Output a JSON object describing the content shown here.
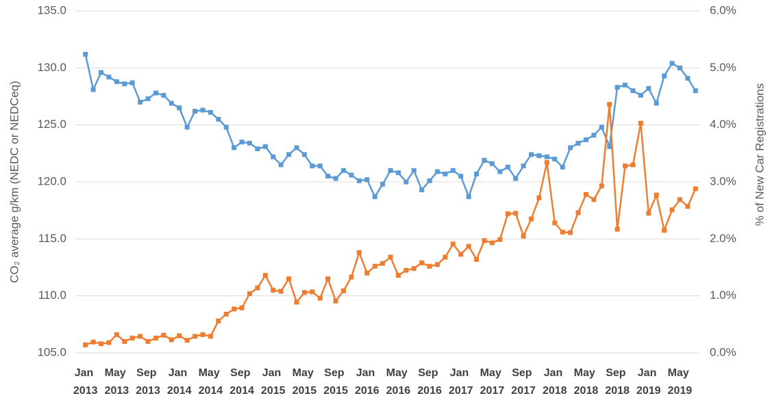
{
  "chart_data": {
    "type": "line",
    "y_label": "CO₂ average g/km (NEDC or NEDCeq)",
    "y2_label": "% of New Car Registrations",
    "categories": [
      "Jan 2013",
      null,
      null,
      null,
      "May 2013",
      null,
      null,
      null,
      "Sep 2013",
      null,
      null,
      null,
      "Jan 2014",
      null,
      null,
      null,
      "May 2014",
      null,
      null,
      null,
      "Sep 2014",
      null,
      null,
      null,
      "Jan 2015",
      null,
      null,
      null,
      "May 2015",
      null,
      null,
      null,
      "Sep 2015",
      null,
      null,
      null,
      "Jan 2016",
      null,
      null,
      null,
      "May 2016",
      null,
      null,
      null,
      "Sep 2016",
      null,
      null,
      null,
      "Jan 2017",
      null,
      null,
      null,
      "May 2017",
      null,
      null,
      null,
      "Sep 2017",
      null,
      null,
      null,
      "Jan 2018",
      null,
      null,
      null,
      "May 2018",
      null,
      null,
      null,
      "Sep 2018",
      null,
      null,
      null,
      "Jan 2019",
      null,
      null,
      null,
      "May 2019",
      null,
      null
    ],
    "series": [
      {
        "color": "#5b9bd5",
        "axis": "y",
        "values": [
          131.2,
          128.1,
          129.6,
          129.2,
          128.8,
          128.6,
          128.7,
          127.0,
          127.3,
          127.8,
          127.6,
          126.9,
          126.5,
          124.8,
          126.2,
          126.3,
          126.1,
          125.5,
          124.8,
          123.0,
          123.5,
          123.4,
          122.9,
          123.1,
          122.2,
          121.5,
          122.4,
          123.0,
          122.4,
          121.4,
          121.4,
          120.5,
          120.3,
          121.0,
          120.6,
          120.1,
          120.2,
          118.7,
          119.8,
          121.0,
          120.8,
          120.0,
          121.0,
          119.3,
          120.1,
          120.9,
          120.7,
          121.0,
          120.5,
          118.7,
          120.7,
          121.9,
          121.6,
          120.9,
          121.3,
          120.3,
          121.4,
          122.4,
          122.3,
          122.2,
          122.0,
          121.3,
          123.0,
          123.4,
          123.7,
          124.1,
          124.8,
          123.1,
          128.3,
          128.5,
          128.0,
          127.6,
          128.2,
          126.9,
          129.3,
          130.4,
          130.0,
          129.1,
          128.0
        ]
      },
      {
        "color": "#ed7d31",
        "axis": "y2",
        "values": [
          0.14,
          0.19,
          0.16,
          0.18,
          0.32,
          0.2,
          0.26,
          0.29,
          0.2,
          0.26,
          0.31,
          0.23,
          0.3,
          0.22,
          0.29,
          0.32,
          0.29,
          0.56,
          0.68,
          0.77,
          0.79,
          1.04,
          1.14,
          1.36,
          1.1,
          1.08,
          1.3,
          0.89,
          1.06,
          1.07,
          0.96,
          1.3,
          0.91,
          1.09,
          1.33,
          1.76,
          1.4,
          1.52,
          1.57,
          1.68,
          1.36,
          1.45,
          1.48,
          1.58,
          1.52,
          1.55,
          1.68,
          1.91,
          1.73,
          1.87,
          1.64,
          1.97,
          1.93,
          1.99,
          2.44,
          2.45,
          2.05,
          2.35,
          2.72,
          3.34,
          2.28,
          2.12,
          2.11,
          2.46,
          2.78,
          2.69,
          2.93,
          4.36,
          2.17,
          3.28,
          3.3,
          4.03,
          2.45,
          2.77,
          2.15,
          2.51,
          2.69,
          2.57,
          2.88
        ]
      }
    ],
    "ylim": [
      105,
      135
    ],
    "yticks": [
      {
        "value": 105,
        "label": "105.0"
      },
      {
        "value": 110,
        "label": "110.0"
      },
      {
        "value": 115,
        "label": "115.0"
      },
      {
        "value": 120,
        "label": "120.0"
      },
      {
        "value": 125,
        "label": "125.0"
      },
      {
        "value": 130,
        "label": "130.0"
      },
      {
        "value": 135,
        "label": "135.0"
      }
    ],
    "y2lim": [
      0,
      6
    ],
    "y2ticks": [
      {
        "value": 0,
        "label": "0.0%"
      },
      {
        "value": 1,
        "label": "1.0%"
      },
      {
        "value": 2,
        "label": "2.0%"
      },
      {
        "value": 3,
        "label": "3.0%"
      },
      {
        "value": 4,
        "label": "4.0%"
      },
      {
        "value": 5,
        "label": "5.0%"
      },
      {
        "value": 6,
        "label": "6.0%"
      }
    ],
    "grid": true
  }
}
